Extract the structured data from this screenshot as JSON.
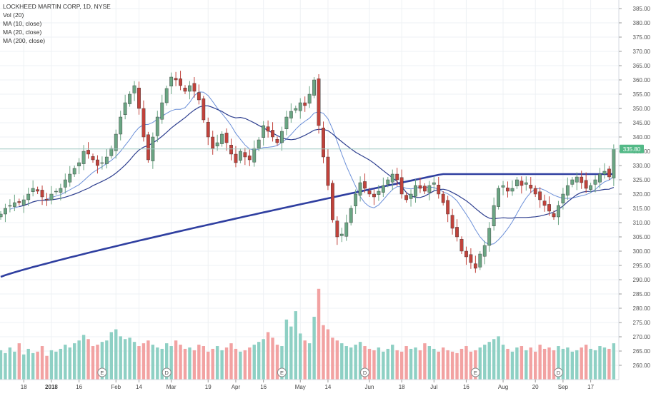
{
  "legend": {
    "symbol": "LOCKHEED MARTIN CORP, 1D, NYSE",
    "volume": "Vol (20)",
    "ma10": "MA (10, close)",
    "ma20": "MA (20, close)",
    "ma200": "MA (200, close)"
  },
  "colors": {
    "up": "#53b987",
    "down": "#eb4d5c",
    "up_body": "#6aa583",
    "down_body": "#c1423b",
    "vol_up": "#8ed0c4",
    "vol_down": "#f2a2a2",
    "ma10": "#6b8fd8",
    "ma20": "#2e3f8f",
    "ma200": "#2f3fa0",
    "grid": "#eef1f4",
    "last_price_line": "#9ec7c0"
  },
  "chart_data": {
    "type": "candlestick",
    "title": "LOCKHEED MARTIN CORP, 1D, NYSE",
    "ylim": [
      255,
      388
    ],
    "y_ticks": [
      260,
      265,
      270,
      275,
      280,
      285,
      290,
      295,
      300,
      305,
      310,
      315,
      320,
      325,
      330,
      335,
      340,
      345,
      350,
      355,
      360,
      365,
      370,
      375,
      380,
      385
    ],
    "y_tick_labels": [
      "260.00",
      "265.00",
      "270.00",
      "275.00",
      "280.00",
      "285.00",
      "290.00",
      "295.00",
      "300.00",
      "305.00",
      "310.00",
      "315.00",
      "320.00",
      "325.00",
      "330.00",
      "335.00",
      "340.00",
      "345.00",
      "350.00",
      "355.00",
      "360.00",
      "365.00",
      "370.00",
      "375.00",
      "380.00",
      "385.00"
    ],
    "last_price": 335.8,
    "last_price_label": "335.80",
    "x_axis": [
      {
        "i": 5,
        "label": "18"
      },
      {
        "i": 11,
        "label": "2018"
      },
      {
        "i": 17,
        "label": "16"
      },
      {
        "i": 25,
        "label": "Feb"
      },
      {
        "i": 30,
        "label": "14"
      },
      {
        "i": 37,
        "label": "Mar"
      },
      {
        "i": 45,
        "label": "19"
      },
      {
        "i": 51,
        "label": "Apr"
      },
      {
        "i": 57,
        "label": "16"
      },
      {
        "i": 65,
        "label": "May"
      },
      {
        "i": 71,
        "label": "14"
      },
      {
        "i": 80,
        "label": "Jun"
      },
      {
        "i": 87,
        "label": "18"
      },
      {
        "i": 94,
        "label": "Jul"
      },
      {
        "i": 101,
        "label": "16"
      },
      {
        "i": 109,
        "label": "Aug"
      },
      {
        "i": 116,
        "label": "20"
      },
      {
        "i": 122,
        "label": "Sep"
      },
      {
        "i": 128,
        "label": "17"
      }
    ],
    "event_markers": [
      {
        "i": 22,
        "label": "E"
      },
      {
        "i": 36,
        "label": "D"
      },
      {
        "i": 61,
        "label": "E"
      },
      {
        "i": 79,
        "label": "D"
      },
      {
        "i": 103,
        "label": "E"
      },
      {
        "i": 121,
        "label": "D"
      }
    ],
    "close": [
      313,
      315,
      316,
      317,
      317,
      318,
      320,
      322,
      321,
      319,
      318,
      320,
      321,
      322,
      325,
      327,
      329,
      331,
      335,
      334,
      332,
      330,
      331,
      333,
      336,
      341,
      347,
      352,
      355,
      358,
      350,
      340,
      332,
      340,
      347,
      352,
      357,
      361,
      360,
      358,
      356,
      358,
      356,
      353,
      346,
      340,
      336,
      338,
      341,
      338,
      334,
      331,
      335,
      333,
      332,
      336,
      339,
      344,
      342,
      340,
      338,
      342,
      347,
      349,
      350,
      352,
      351,
      355,
      360,
      344,
      333,
      323,
      311,
      305,
      306,
      310,
      315,
      320,
      324,
      322,
      320,
      319,
      321,
      323,
      325,
      327,
      325,
      320,
      318,
      320,
      323,
      322,
      321,
      323,
      324,
      320,
      317,
      313,
      308,
      305,
      300,
      298,
      296,
      294,
      299,
      302,
      308,
      316,
      322,
      323,
      321,
      322,
      325,
      323,
      324,
      322,
      320,
      318,
      316,
      314,
      312,
      316,
      320,
      323,
      325,
      326,
      324,
      322,
      323,
      325,
      327,
      328,
      326,
      335.8
    ],
    "volume": [
      2.1,
      1.9,
      2.3,
      2.0,
      2.6,
      1.8,
      2.2,
      1.9,
      2.0,
      2.4,
      1.7,
      2.1,
      2.0,
      2.2,
      2.5,
      2.3,
      2.6,
      2.8,
      3.2,
      2.9,
      2.4,
      2.5,
      2.7,
      2.8,
      3.4,
      3.6,
      3.1,
      2.9,
      3.0,
      2.7,
      2.4,
      2.6,
      2.8,
      2.5,
      2.3,
      2.2,
      2.6,
      2.4,
      2.8,
      2.5,
      2.2,
      2.3,
      2.1,
      2.5,
      2.4,
      2.0,
      2.2,
      2.4,
      2.1,
      2.3,
      2.6,
      2.2,
      2.0,
      2.1,
      2.3,
      2.5,
      2.7,
      2.9,
      3.4,
      3.0,
      2.5,
      2.4,
      4.3,
      3.8,
      4.9,
      3.3,
      2.8,
      2.6,
      4.5,
      6.5,
      3.9,
      3.6,
      3.0,
      2.8,
      2.6,
      2.4,
      2.3,
      2.5,
      2.7,
      2.4,
      2.2,
      2.1,
      2.3,
      2.0,
      2.2,
      2.5,
      2.1,
      2.0,
      2.4,
      2.2,
      2.3,
      2.1,
      2.6,
      2.4,
      2.2,
      2.0,
      2.3,
      2.1,
      2.0,
      1.9,
      2.2,
      2.4,
      2.0,
      2.1,
      2.3,
      2.5,
      2.7,
      2.9,
      3.1,
      2.5,
      2.2,
      2.0,
      2.3,
      2.4,
      2.1,
      2.3,
      2.0,
      2.5,
      2.2,
      2.3,
      2.1,
      2.4,
      2.2,
      2.3,
      2.0,
      2.1,
      2.3,
      2.5,
      2.2,
      2.1,
      2.4,
      2.3,
      2.2,
      2.6
    ]
  }
}
